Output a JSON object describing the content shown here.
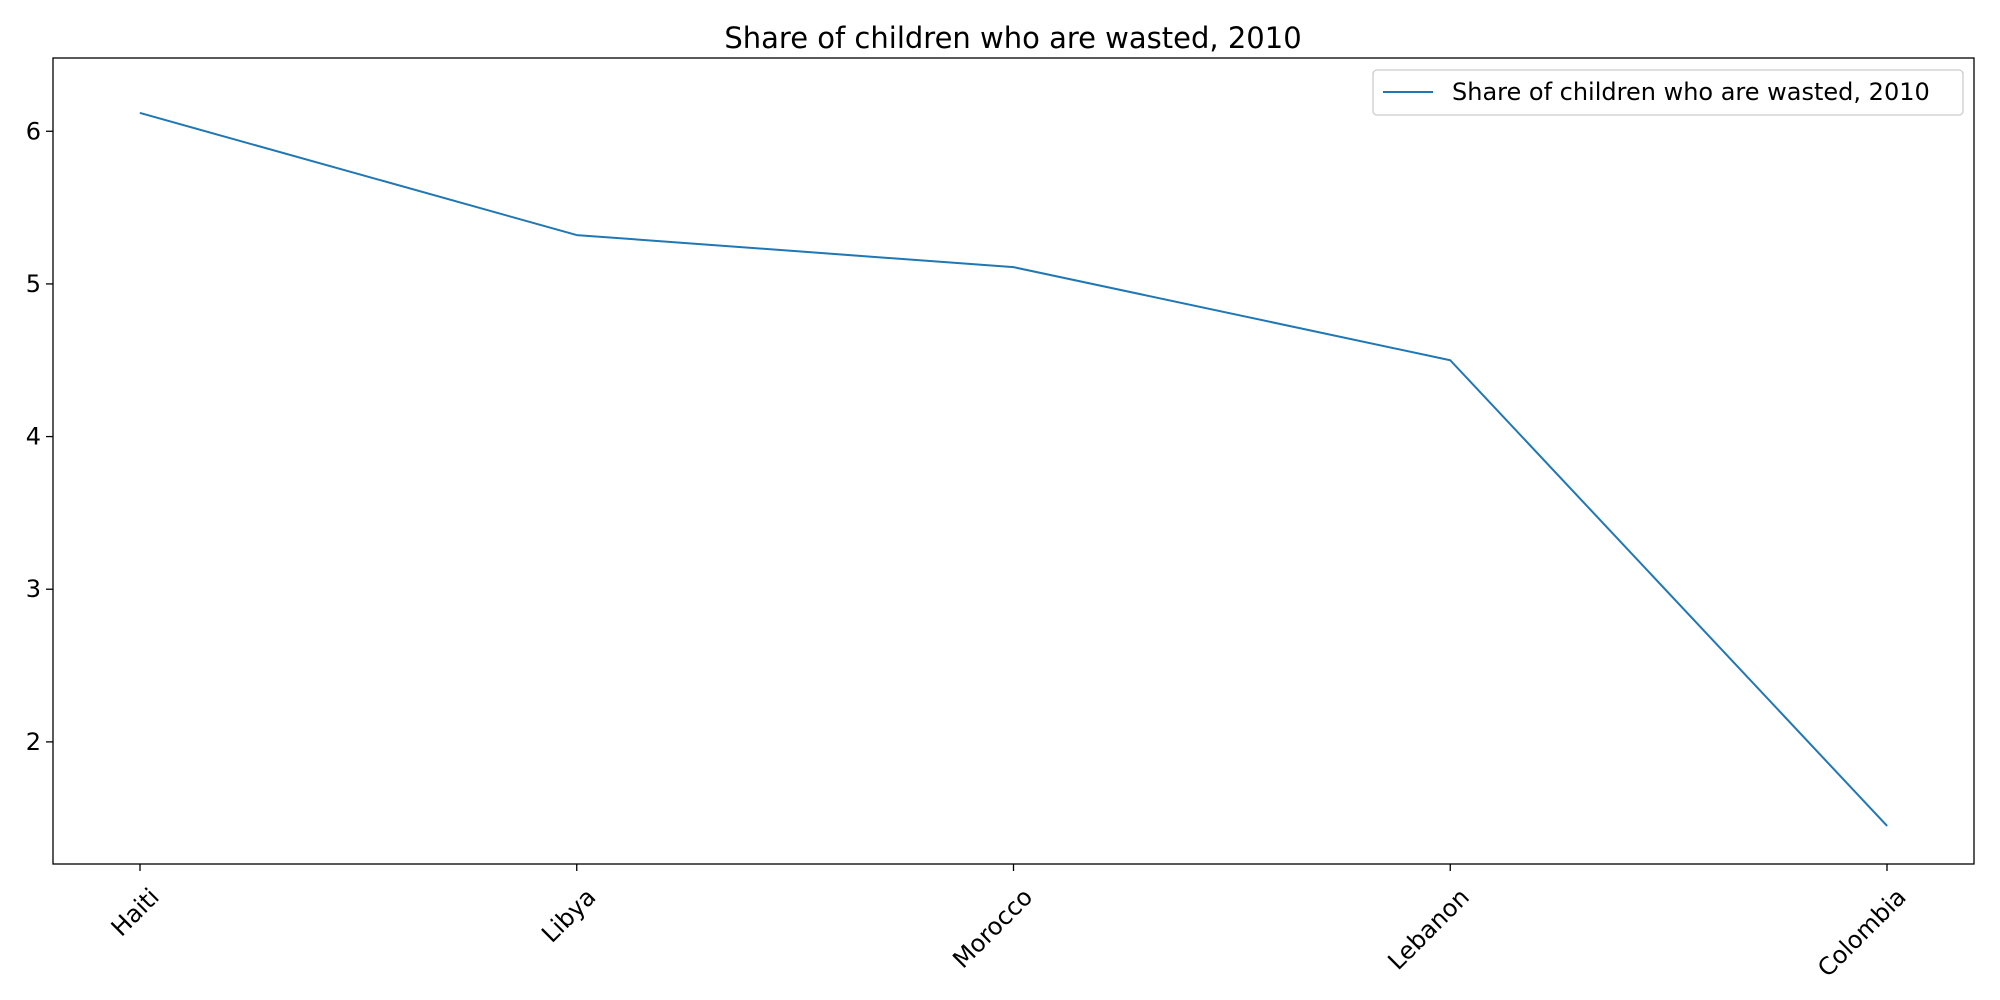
{
  "chart_data": {
    "type": "line",
    "title": "Share of children who are wasted, 2010",
    "xlabel": "",
    "ylabel": "",
    "categories": [
      "Haiti",
      "Libya",
      "Morocco",
      "Lebanon",
      "Colombia"
    ],
    "series": [
      {
        "name": "Share of children who are wasted, 2010",
        "values": [
          6.12,
          5.32,
          5.11,
          4.5,
          1.45
        ],
        "color": "#1f77b4"
      }
    ],
    "ylim": [
      1.2,
      6.48
    ],
    "yticks": [
      2,
      3,
      4,
      5,
      6
    ],
    "grid": false,
    "legend": "top-right"
  }
}
